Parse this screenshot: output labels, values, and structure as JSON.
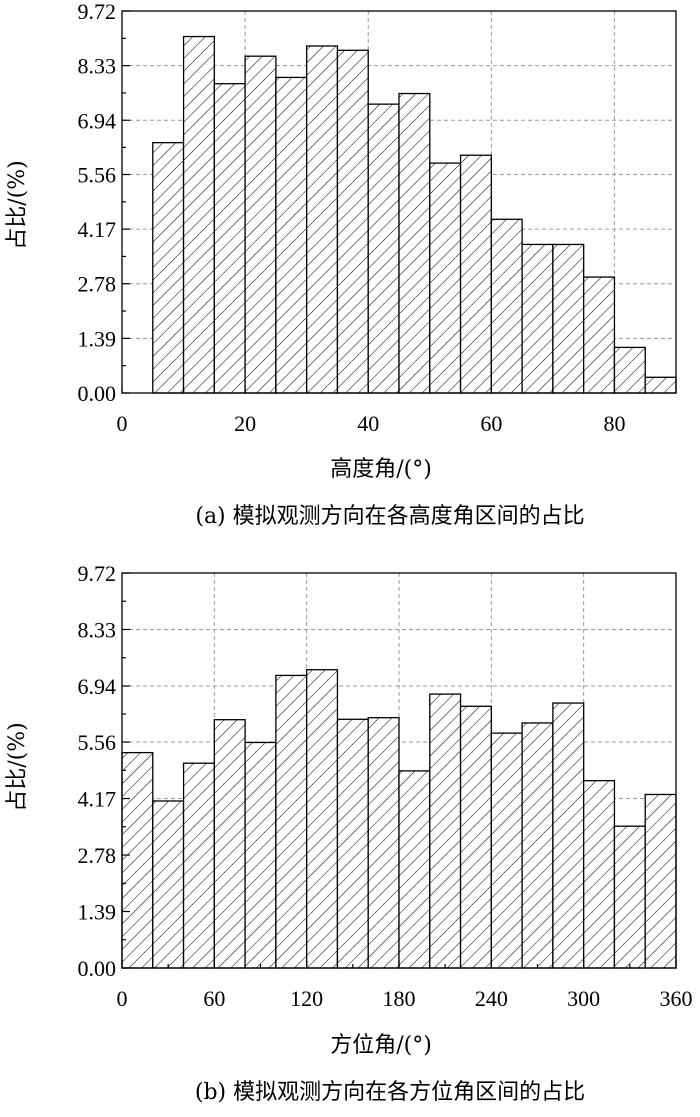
{
  "chart_data": [
    {
      "type": "bar",
      "title": "",
      "caption": "(a) 模拟观测方向在各高度角区间的占比",
      "xlabel": "高度角/(°)",
      "ylabel": "占比/(%)",
      "xlim": [
        0,
        90
      ],
      "ylim": [
        0,
        9.72
      ],
      "xticks": [
        0,
        20,
        40,
        60,
        80
      ],
      "xtick_labels": [
        "0",
        "20",
        "40",
        "60",
        "80"
      ],
      "yticks": [
        0,
        1.39,
        2.78,
        4.17,
        5.56,
        6.94,
        8.33,
        9.72
      ],
      "ytick_labels": [
        "0.00",
        "1.39",
        "2.78",
        "4.17",
        "5.56",
        "6.94",
        "8.33",
        "9.72"
      ],
      "grid": true,
      "bin_width": 5,
      "bins_start": [
        5,
        10,
        15,
        20,
        25,
        30,
        35,
        40,
        45,
        50,
        55,
        60,
        65,
        70,
        75,
        80,
        85
      ],
      "values": [
        6.37,
        9.07,
        7.87,
        8.57,
        8.03,
        8.83,
        8.72,
        7.35,
        7.62,
        5.85,
        6.05,
        4.42,
        3.78,
        3.78,
        2.95,
        1.16,
        0.4
      ]
    },
    {
      "type": "bar",
      "title": "",
      "caption": "(b) 模拟观测方向在各方位角区间的占比",
      "xlabel": "方位角/(°)",
      "ylabel": "占比/(%)",
      "xlim": [
        0,
        360
      ],
      "ylim": [
        0,
        9.72
      ],
      "xticks": [
        0,
        60,
        120,
        180,
        240,
        300,
        360
      ],
      "xtick_labels": [
        "0",
        "60",
        "120",
        "180",
        "240",
        "300",
        "360"
      ],
      "yticks": [
        0,
        1.39,
        2.78,
        4.17,
        5.56,
        6.94,
        8.33,
        9.72
      ],
      "ytick_labels": [
        "0.00",
        "1.39",
        "2.78",
        "4.17",
        "5.56",
        "6.94",
        "8.33",
        "9.72"
      ],
      "grid": true,
      "bin_width": 20,
      "bins_start": [
        0,
        20,
        40,
        60,
        80,
        100,
        120,
        140,
        160,
        180,
        200,
        220,
        240,
        260,
        280,
        300,
        320,
        340
      ],
      "values": [
        5.3,
        4.11,
        5.04,
        6.11,
        5.55,
        7.2,
        7.34,
        6.12,
        6.16,
        4.85,
        6.74,
        6.44,
        5.78,
        6.03,
        6.52,
        4.61,
        3.49,
        4.27
      ]
    }
  ]
}
